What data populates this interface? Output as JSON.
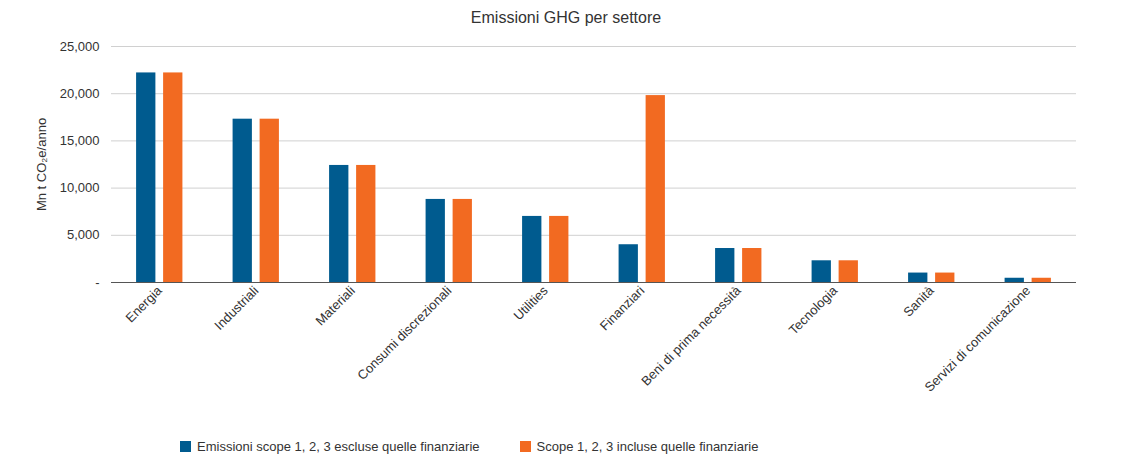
{
  "chart_data": {
    "type": "bar",
    "title": "Emissioni GHG per settore",
    "y_label": "Mn t CO₂e/anno",
    "categories": [
      "Energia",
      "Industriali",
      "Materiali",
      "Consumi discrezionali",
      "Utilities",
      "Finanziari",
      "Beni di prima necessità",
      "Tecnologia",
      "Sanità",
      "Servizi di comunicazione"
    ],
    "series": [
      {
        "name": "Emissioni scope 1, 2, 3 escluse quelle finanziarie",
        "color": "#005b8f",
        "values": [
          22200,
          17300,
          12400,
          8800,
          7000,
          4000,
          3600,
          2300,
          1000,
          450
        ]
      },
      {
        "name": "Scope 1, 2, 3 incluse quelle finanziarie",
        "color": "#f26a21",
        "values": [
          22200,
          17300,
          12400,
          8800,
          7000,
          19800,
          3600,
          2300,
          1000,
          450
        ]
      }
    ],
    "ylim": [
      0,
      25000
    ],
    "yticks": [
      {
        "value": 0,
        "label": "-"
      },
      {
        "value": 5000,
        "label": "5,000"
      },
      {
        "value": 10000,
        "label": "10,000"
      },
      {
        "value": 15000,
        "label": "15,000"
      },
      {
        "value": 20000,
        "label": "20,000"
      },
      {
        "value": 25000,
        "label": "25,000"
      }
    ],
    "grid": true,
    "legend": "bottom"
  }
}
